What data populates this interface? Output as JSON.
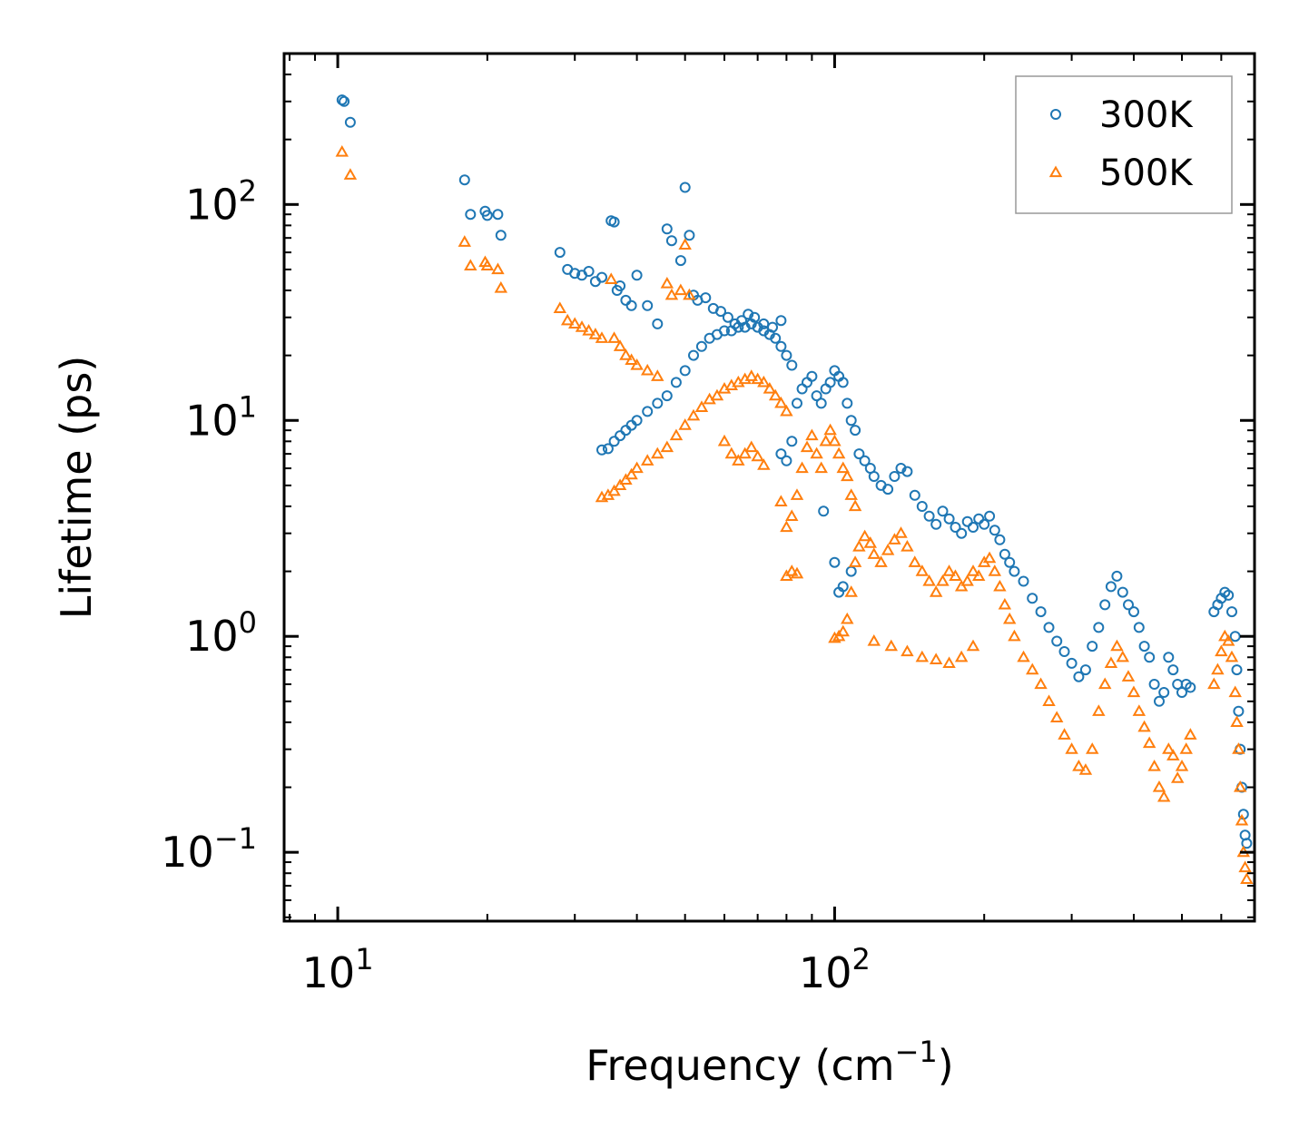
{
  "chart_data": {
    "type": "scatter",
    "title": "",
    "xlabel": "Frequency (cm",
    "xlabel_sup": "−1",
    "xlabel_tail": ")",
    "ylabel": "Lifetime (ps)",
    "xscale": "log",
    "yscale": "log",
    "xlim": [
      7.8,
      700
    ],
    "ylim": [
      0.048,
      500
    ],
    "x_ticks": [
      {
        "value": 10,
        "base": "10",
        "exp": "1"
      },
      {
        "value": 100,
        "base": "10",
        "exp": "2"
      }
    ],
    "y_ticks": [
      {
        "value": 0.1,
        "base": "10",
        "exp": "−1"
      },
      {
        "value": 1,
        "base": "10",
        "exp": "0"
      },
      {
        "value": 10,
        "base": "10",
        "exp": "1"
      },
      {
        "value": 100,
        "base": "10",
        "exp": "2"
      }
    ],
    "legend_position": "top-right",
    "series": [
      {
        "name": "300K",
        "marker": "circle",
        "color": "#1f77b4",
        "points": [
          [
            10.2,
            305
          ],
          [
            10.3,
            300
          ],
          [
            10.6,
            240
          ],
          [
            18,
            130
          ],
          [
            18.5,
            90
          ],
          [
            19.8,
            93
          ],
          [
            20,
            89
          ],
          [
            21,
            90
          ],
          [
            21.3,
            72
          ],
          [
            28,
            60
          ],
          [
            29,
            50
          ],
          [
            30,
            48
          ],
          [
            31,
            47
          ],
          [
            32,
            49
          ],
          [
            33,
            44
          ],
          [
            34,
            46
          ],
          [
            35.5,
            84
          ],
          [
            36,
            83
          ],
          [
            36.5,
            40
          ],
          [
            37,
            42
          ],
          [
            38,
            36
          ],
          [
            39,
            34
          ],
          [
            40,
            47
          ],
          [
            42,
            34
          ],
          [
            44,
            28
          ],
          [
            46,
            77
          ],
          [
            47,
            68
          ],
          [
            49,
            55
          ],
          [
            50,
            120
          ],
          [
            51,
            72
          ],
          [
            52,
            38
          ],
          [
            53,
            36
          ],
          [
            55,
            37
          ],
          [
            57,
            33
          ],
          [
            59,
            32
          ],
          [
            61,
            30
          ],
          [
            63,
            28
          ],
          [
            65,
            29
          ],
          [
            67,
            31
          ],
          [
            69,
            30
          ],
          [
            72,
            28
          ],
          [
            75,
            27
          ],
          [
            78,
            29
          ],
          [
            34,
            7.3
          ],
          [
            35,
            7.4
          ],
          [
            36,
            8
          ],
          [
            37,
            8.5
          ],
          [
            38,
            9
          ],
          [
            39,
            9.5
          ],
          [
            40,
            10
          ],
          [
            42,
            11
          ],
          [
            44,
            12
          ],
          [
            46,
            13
          ],
          [
            48,
            15
          ],
          [
            50,
            17
          ],
          [
            52,
            20
          ],
          [
            54,
            22
          ],
          [
            56,
            24
          ],
          [
            58,
            25
          ],
          [
            60,
            26
          ],
          [
            62,
            26
          ],
          [
            64,
            27
          ],
          [
            66,
            27
          ],
          [
            68,
            28
          ],
          [
            70,
            27
          ],
          [
            72,
            26
          ],
          [
            74,
            25
          ],
          [
            76,
            24
          ],
          [
            78,
            22
          ],
          [
            80,
            20
          ],
          [
            82,
            18
          ],
          [
            78,
            7
          ],
          [
            80,
            6.5
          ],
          [
            82,
            8
          ],
          [
            84,
            12
          ],
          [
            86,
            14
          ],
          [
            88,
            15
          ],
          [
            90,
            16
          ],
          [
            92,
            13
          ],
          [
            94,
            12
          ],
          [
            96,
            14
          ],
          [
            98,
            15
          ],
          [
            100,
            17
          ],
          [
            102,
            16
          ],
          [
            104,
            15
          ],
          [
            106,
            12
          ],
          [
            108,
            10
          ],
          [
            110,
            9
          ],
          [
            112,
            7
          ],
          [
            115,
            6.5
          ],
          [
            118,
            6
          ],
          [
            120,
            5.5
          ],
          [
            124,
            5
          ],
          [
            128,
            4.8
          ],
          [
            132,
            5.5
          ],
          [
            136,
            6
          ],
          [
            140,
            5.8
          ],
          [
            145,
            4.5
          ],
          [
            150,
            4
          ],
          [
            155,
            3.6
          ],
          [
            160,
            3.3
          ],
          [
            165,
            3.8
          ],
          [
            170,
            3.5
          ],
          [
            175,
            3.2
          ],
          [
            180,
            3.0
          ],
          [
            185,
            3.4
          ],
          [
            190,
            3.2
          ],
          [
            195,
            3.5
          ],
          [
            200,
            3.3
          ],
          [
            205,
            3.6
          ],
          [
            210,
            3.1
          ],
          [
            215,
            2.8
          ],
          [
            220,
            2.4
          ],
          [
            225,
            2.2
          ],
          [
            95,
            3.8
          ],
          [
            100,
            2.2
          ],
          [
            102,
            1.6
          ],
          [
            104,
            1.7
          ],
          [
            108,
            2.0
          ],
          [
            230,
            2.0
          ],
          [
            240,
            1.8
          ],
          [
            250,
            1.5
          ],
          [
            260,
            1.3
          ],
          [
            270,
            1.1
          ],
          [
            280,
            0.95
          ],
          [
            290,
            0.85
          ],
          [
            300,
            0.75
          ],
          [
            310,
            0.65
          ],
          [
            320,
            0.7
          ],
          [
            330,
            0.9
          ],
          [
            340,
            1.1
          ],
          [
            350,
            1.4
          ],
          [
            360,
            1.7
          ],
          [
            370,
            1.9
          ],
          [
            380,
            1.6
          ],
          [
            390,
            1.4
          ],
          [
            400,
            1.3
          ],
          [
            410,
            1.1
          ],
          [
            420,
            0.9
          ],
          [
            430,
            0.8
          ],
          [
            440,
            0.6
          ],
          [
            450,
            0.5
          ],
          [
            460,
            0.55
          ],
          [
            470,
            0.8
          ],
          [
            480,
            0.7
          ],
          [
            490,
            0.6
          ],
          [
            500,
            0.55
          ],
          [
            510,
            0.6
          ],
          [
            520,
            0.58
          ],
          [
            580,
            1.3
          ],
          [
            590,
            1.4
          ],
          [
            600,
            1.5
          ],
          [
            610,
            1.6
          ],
          [
            620,
            1.55
          ],
          [
            630,
            1.3
          ],
          [
            640,
            1.0
          ],
          [
            645,
            0.7
          ],
          [
            650,
            0.45
          ],
          [
            655,
            0.3
          ],
          [
            660,
            0.2
          ],
          [
            665,
            0.15
          ],
          [
            670,
            0.12
          ],
          [
            675,
            0.11
          ]
        ]
      },
      {
        "name": "500K",
        "marker": "triangle",
        "color": "#ff7f0e",
        "points": [
          [
            10.2,
            175
          ],
          [
            10.6,
            137
          ],
          [
            18,
            67
          ],
          [
            18.5,
            52
          ],
          [
            19.8,
            54
          ],
          [
            20,
            52
          ],
          [
            21,
            50
          ],
          [
            21.3,
            41
          ],
          [
            28,
            33
          ],
          [
            29,
            29
          ],
          [
            30,
            28
          ],
          [
            31,
            27
          ],
          [
            32,
            26
          ],
          [
            33,
            25
          ],
          [
            34,
            24
          ],
          [
            35.5,
            45
          ],
          [
            36,
            24
          ],
          [
            37,
            22
          ],
          [
            38,
            20
          ],
          [
            39,
            19
          ],
          [
            40,
            18
          ],
          [
            42,
            17
          ],
          [
            44,
            16
          ],
          [
            46,
            43
          ],
          [
            47,
            38
          ],
          [
            49,
            40
          ],
          [
            50,
            65
          ],
          [
            51,
            38
          ],
          [
            34,
            4.4
          ],
          [
            35,
            4.5
          ],
          [
            36,
            4.7
          ],
          [
            37,
            5
          ],
          [
            38,
            5.3
          ],
          [
            39,
            5.6
          ],
          [
            40,
            6
          ],
          [
            42,
            6.5
          ],
          [
            44,
            7
          ],
          [
            46,
            7.5
          ],
          [
            48,
            8.5
          ],
          [
            50,
            9.5
          ],
          [
            52,
            10.5
          ],
          [
            54,
            11.5
          ],
          [
            56,
            12.5
          ],
          [
            58,
            13
          ],
          [
            60,
            14
          ],
          [
            62,
            14.5
          ],
          [
            64,
            15
          ],
          [
            66,
            15.5
          ],
          [
            68,
            16
          ],
          [
            70,
            15.5
          ],
          [
            72,
            15
          ],
          [
            74,
            14
          ],
          [
            76,
            13
          ],
          [
            78,
            12
          ],
          [
            80,
            11
          ],
          [
            60,
            8
          ],
          [
            62,
            7
          ],
          [
            64,
            6.5
          ],
          [
            66,
            7
          ],
          [
            68,
            7.5
          ],
          [
            70,
            6.8
          ],
          [
            72,
            6.2
          ],
          [
            78,
            4.2
          ],
          [
            80,
            3.2
          ],
          [
            82,
            3.6
          ],
          [
            84,
            4.5
          ],
          [
            86,
            6
          ],
          [
            88,
            7.5
          ],
          [
            90,
            8.5
          ],
          [
            92,
            7
          ],
          [
            94,
            6
          ],
          [
            96,
            8
          ],
          [
            98,
            9
          ],
          [
            100,
            8
          ],
          [
            102,
            7
          ],
          [
            104,
            6
          ],
          [
            106,
            5.5
          ],
          [
            108,
            4.5
          ],
          [
            110,
            4
          ],
          [
            80,
            1.9
          ],
          [
            82,
            2.0
          ],
          [
            84,
            1.95
          ],
          [
            100,
            0.98
          ],
          [
            102,
            1.0
          ],
          [
            104,
            1.05
          ],
          [
            106,
            1.2
          ],
          [
            108,
            1.6
          ],
          [
            110,
            2.2
          ],
          [
            112,
            2.6
          ],
          [
            115,
            2.9
          ],
          [
            118,
            2.7
          ],
          [
            120,
            2.4
          ],
          [
            124,
            2.2
          ],
          [
            128,
            2.5
          ],
          [
            132,
            2.8
          ],
          [
            136,
            3.0
          ],
          [
            140,
            2.6
          ],
          [
            145,
            2.2
          ],
          [
            150,
            2.0
          ],
          [
            155,
            1.8
          ],
          [
            160,
            1.6
          ],
          [
            165,
            1.8
          ],
          [
            170,
            2.0
          ],
          [
            175,
            1.9
          ],
          [
            180,
            1.7
          ],
          [
            185,
            1.8
          ],
          [
            190,
            2.0
          ],
          [
            195,
            1.9
          ],
          [
            200,
            2.2
          ],
          [
            205,
            2.3
          ],
          [
            210,
            2.0
          ],
          [
            215,
            1.7
          ],
          [
            220,
            1.4
          ],
          [
            120,
            0.95
          ],
          [
            130,
            0.9
          ],
          [
            140,
            0.85
          ],
          [
            150,
            0.8
          ],
          [
            160,
            0.78
          ],
          [
            170,
            0.75
          ],
          [
            180,
            0.8
          ],
          [
            190,
            0.9
          ],
          [
            225,
            1.2
          ],
          [
            230,
            1.0
          ],
          [
            240,
            0.8
          ],
          [
            250,
            0.7
          ],
          [
            260,
            0.6
          ],
          [
            270,
            0.5
          ],
          [
            280,
            0.42
          ],
          [
            290,
            0.35
          ],
          [
            300,
            0.3
          ],
          [
            310,
            0.25
          ],
          [
            320,
            0.24
          ],
          [
            330,
            0.3
          ],
          [
            340,
            0.45
          ],
          [
            350,
            0.6
          ],
          [
            360,
            0.75
          ],
          [
            370,
            0.9
          ],
          [
            380,
            0.8
          ],
          [
            390,
            0.65
          ],
          [
            400,
            0.55
          ],
          [
            410,
            0.45
          ],
          [
            420,
            0.38
          ],
          [
            430,
            0.32
          ],
          [
            440,
            0.25
          ],
          [
            450,
            0.2
          ],
          [
            460,
            0.18
          ],
          [
            470,
            0.3
          ],
          [
            480,
            0.28
          ],
          [
            490,
            0.22
          ],
          [
            500,
            0.25
          ],
          [
            510,
            0.3
          ],
          [
            520,
            0.35
          ],
          [
            580,
            0.6
          ],
          [
            590,
            0.7
          ],
          [
            600,
            0.85
          ],
          [
            610,
            1.0
          ],
          [
            620,
            0.95
          ],
          [
            630,
            0.8
          ],
          [
            640,
            0.55
          ],
          [
            645,
            0.4
          ],
          [
            650,
            0.3
          ],
          [
            655,
            0.2
          ],
          [
            660,
            0.14
          ],
          [
            665,
            0.1
          ],
          [
            670,
            0.085
          ],
          [
            675,
            0.075
          ]
        ]
      }
    ]
  }
}
